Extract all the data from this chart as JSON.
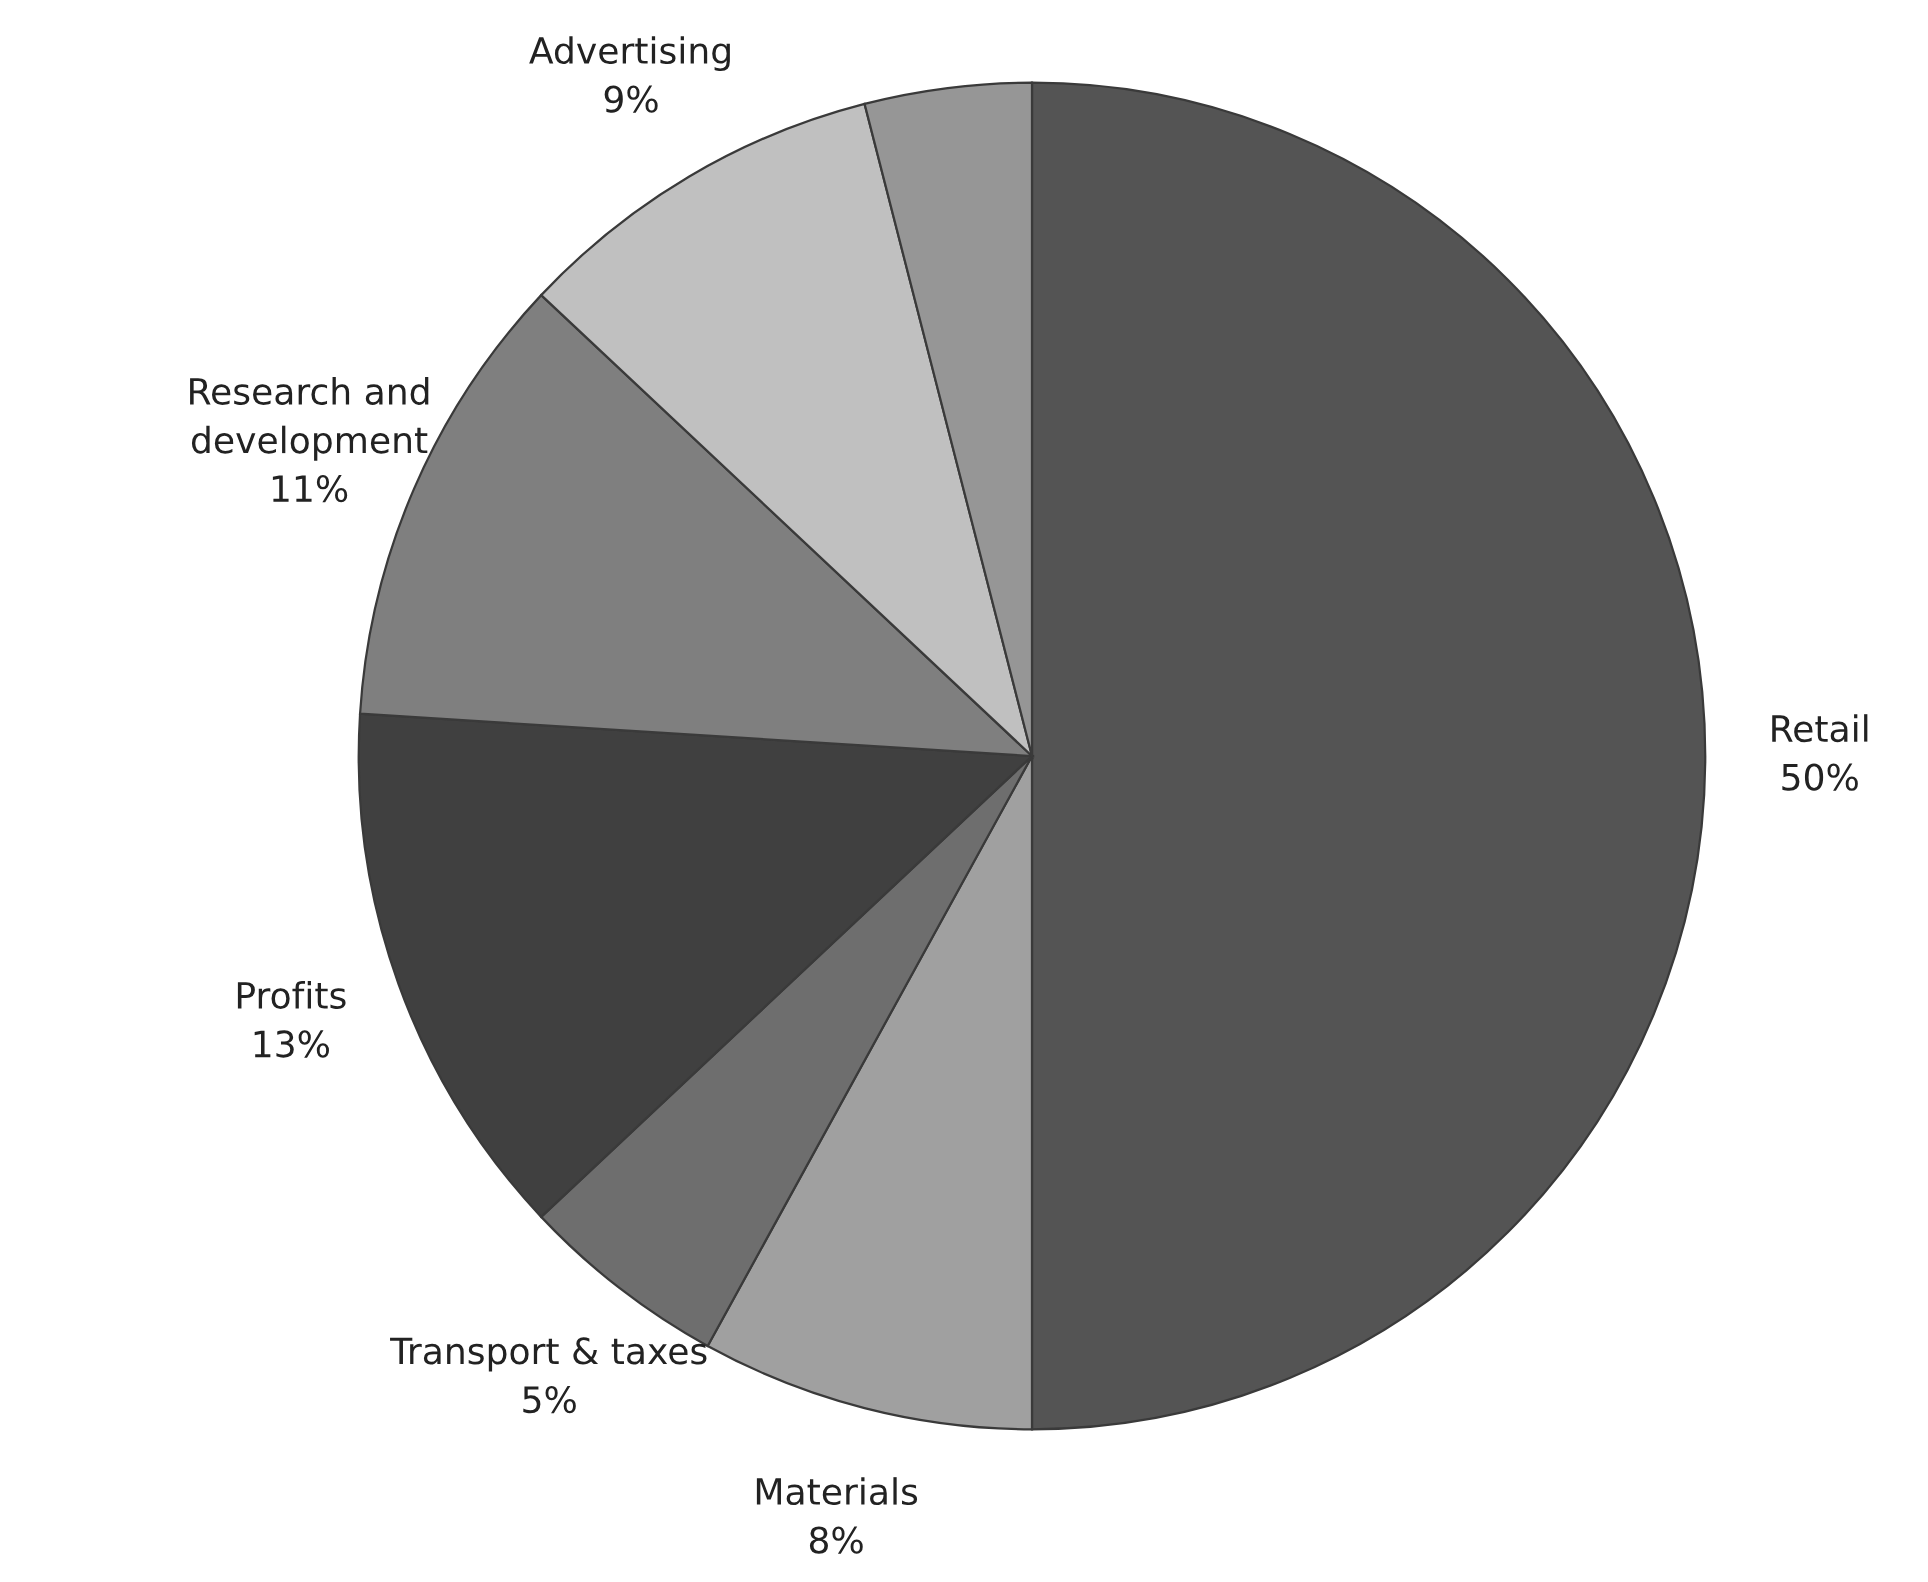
{
  "chart_data": {
    "type": "pie",
    "categories": [
      "Retail",
      "Materials",
      "Transport & taxes",
      "Profits",
      "Research and\ndevelopment",
      "Advertising",
      null
    ],
    "values": [
      50,
      8,
      5,
      13,
      11,
      9,
      4
    ],
    "value_labels": [
      "50%",
      "8%",
      "5%",
      "13%",
      "11%",
      "9%",
      null
    ],
    "colors": [
      "#545454",
      "#a0a0a0",
      "#6e6e6e",
      "#404040",
      "#7f7f7f",
      "#c0c0c0",
      "#969696"
    ]
  }
}
